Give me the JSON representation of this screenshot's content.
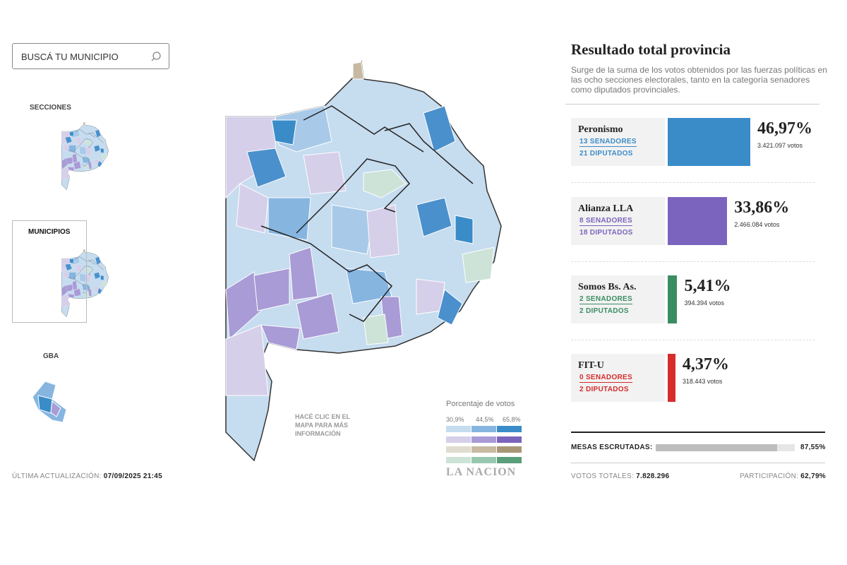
{
  "search": {
    "placeholder": "BUSCÁ TU MUNICIPIO"
  },
  "views": [
    "SECCIONES",
    "MUNICIPIOS",
    "GBA"
  ],
  "updated": {
    "label": "ÚLTIMA ACTUALIZACIÓN:",
    "value": "07/09/2025 21:45"
  },
  "map_hint": [
    "HACÉ CLIC EN EL",
    "MAPA PARA MÁS",
    "INFORMACIÓN"
  ],
  "legend": {
    "title": "Porcentaje de votos",
    "labels": [
      "30,9%",
      "44,5%",
      "65,8%"
    ]
  },
  "brand": "LA NACION",
  "results": {
    "title": "Resultado total provincia",
    "description": [
      "Surge de la suma de los votos obtenidos por las fuerzas políticas en",
      "las ocho secciones electorales, tanto en la categoría senadores",
      "como diputados provinciales."
    ],
    "parties": [
      {
        "name": "Peronismo",
        "senators": "13 SENADORES",
        "deputies": "21 DIPUTADOS",
        "share": {
          "value": 46.97,
          "label": "46,97%"
        },
        "votes": "3.421.097 votos",
        "color": "#3a8cc9"
      },
      {
        "name": "Alianza LLA",
        "senators": "8 SENADORES",
        "deputies": "18 DIPUTADOS",
        "share": {
          "value": 33.86,
          "label": "33,86%"
        },
        "votes": "2.466.084 votos",
        "color": "#7b64bd"
      },
      {
        "name": "Somos Bs. As.",
        "senators": "2 SENADORES",
        "deputies": "2 DIPUTADOS",
        "share": {
          "value": 5.41,
          "label": "5,41%"
        },
        "votes": "394.394 votos",
        "color": "#3a8d62"
      },
      {
        "name": "FIT-U",
        "senators": "0 SENADORES",
        "deputies": "2 DIPUTADOS",
        "share": {
          "value": 4.37,
          "label": "4,37%"
        },
        "votes": "318.443 votos",
        "color": "#d62c2c"
      }
    ],
    "counted": {
      "label": "MESAS ESCRUTADAS:",
      "share": {
        "value": 87.55,
        "label": "87,55%"
      }
    },
    "total_votes": {
      "label": "VOTOS TOTALES:",
      "value": "7.828.296"
    },
    "turnout": {
      "label": "PARTICIPACIÓN:",
      "value": "62,79%"
    }
  }
}
